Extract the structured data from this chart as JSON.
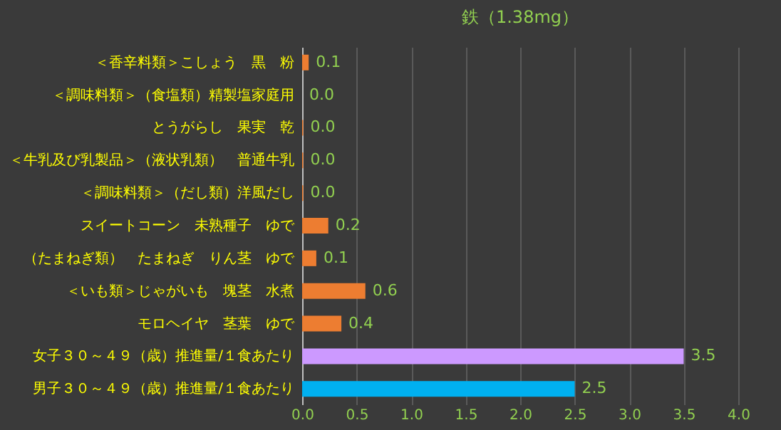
{
  "chart_data": {
    "type": "bar",
    "orientation": "horizontal",
    "title": "鉄（1.38mg）",
    "categories": [
      "＜香辛料類＞こしょう　黒　粉",
      "＜調味料類＞（食塩類）精製塩家庭用",
      "とうがらし　果実　乾",
      "＜牛乳及び乳製品＞（液状乳類）　普通牛乳",
      "＜調味料類＞（だし類）洋風だし",
      "スイートコーン　未熟種子　ゆで",
      "（たまねぎ類）　たまねぎ　りん茎　ゆで",
      "＜いも類＞じゃがいも　塊茎　水煮",
      "モロヘイヤ　茎葉　ゆで",
      "女子３０～４９（歳）推進量/１食あたり",
      "男子３０～４９（歳）推進量/１食あたり"
    ],
    "values": [
      0.06,
      0.0,
      0.01,
      0.01,
      0.01,
      0.24,
      0.13,
      0.58,
      0.36,
      3.5,
      2.5
    ],
    "value_labels": [
      "0.1",
      "0.0",
      "0.0",
      "0.0",
      "0.0",
      "0.2",
      "0.1",
      "0.6",
      "0.4",
      "3.5",
      "2.5"
    ],
    "colors": [
      "#ed7d31",
      "#ed7d31",
      "#ed7d31",
      "#ed7d31",
      "#ed7d31",
      "#ed7d31",
      "#ed7d31",
      "#ed7d31",
      "#ed7d31",
      "#cc99ff",
      "#00b0f0"
    ],
    "xlim": [
      0,
      4.0
    ],
    "xticks": [
      {
        "value": 0,
        "label": "0.0"
      },
      0.5,
      {
        "value": 1,
        "label": "1.0"
      },
      1.5,
      {
        "value": 2,
        "label": "2.0"
      },
      2.5,
      {
        "value": 3,
        "label": "3.0"
      },
      3.5,
      {
        "value": 4,
        "label": "4.0"
      }
    ],
    "grid": "x"
  }
}
